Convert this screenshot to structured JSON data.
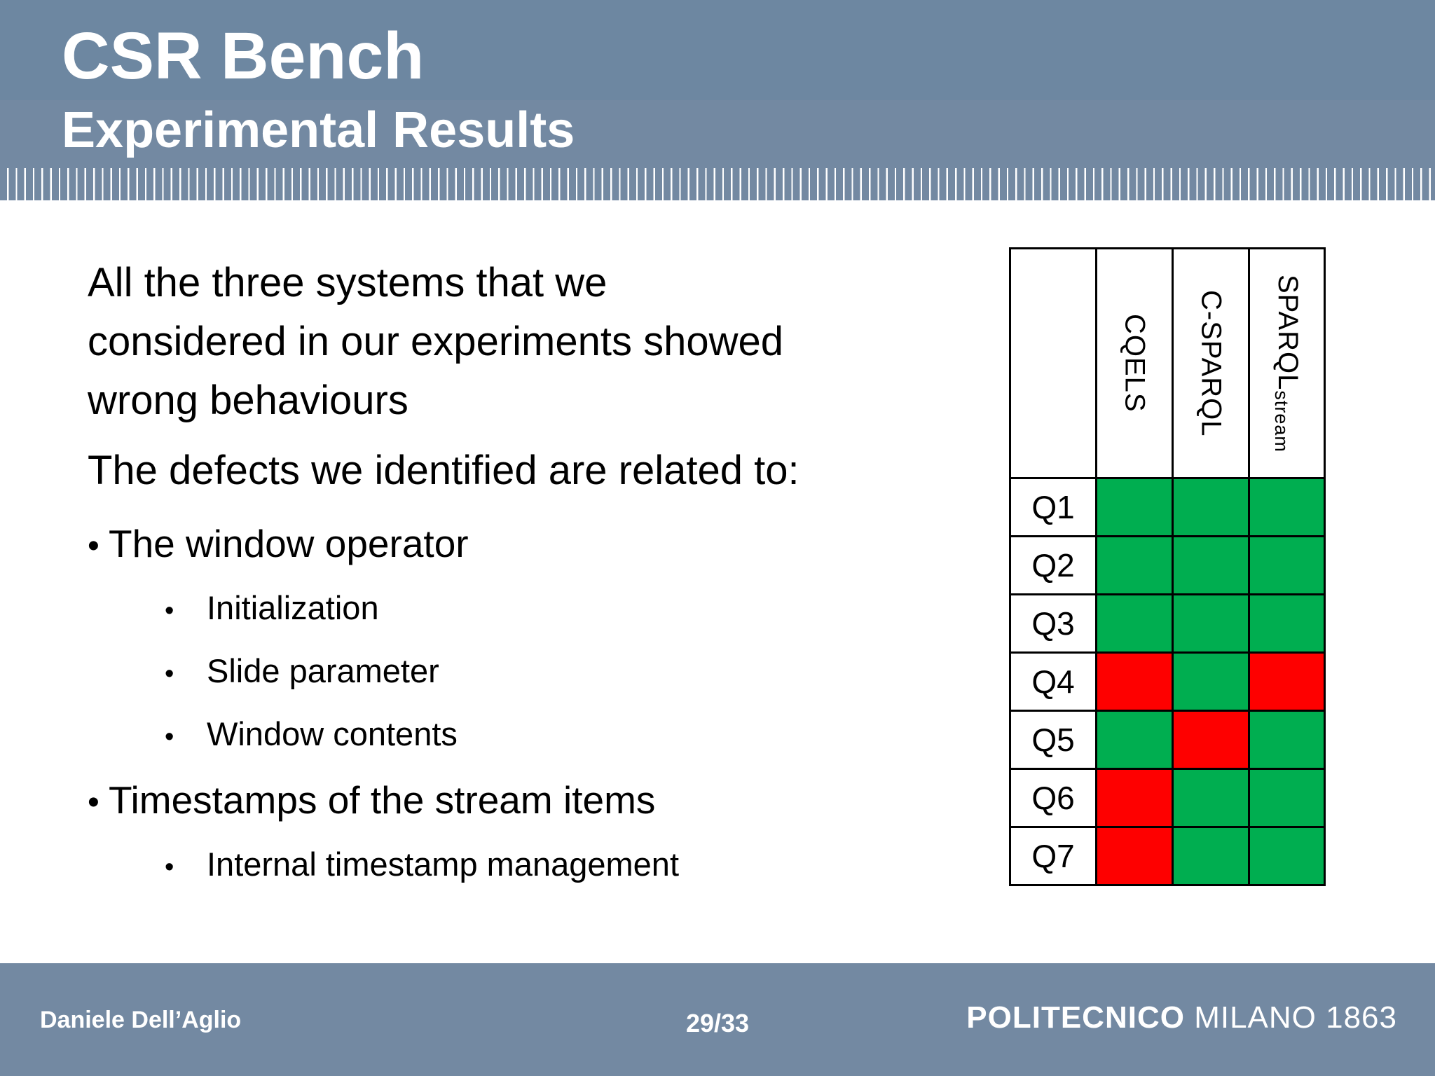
{
  "header": {
    "title": "CSR Bench",
    "subtitle": "Experimental Results"
  },
  "body": {
    "paragraph1_lines": [
      "All the three systems that we",
      "considered in our experiments showed",
      "wrong behaviours"
    ],
    "paragraph2": "The defects we identified are related to:",
    "bullets": [
      {
        "label": "The window operator",
        "children": [
          "Initialization",
          "Slide parameter",
          "Window contents"
        ]
      },
      {
        "label": "Timestamps of the stream items",
        "children": [
          "Internal timestamp management"
        ]
      }
    ]
  },
  "results_table": {
    "columns": [
      {
        "label": "CQELS",
        "subscript": ""
      },
      {
        "label": "C-SPARQL",
        "subscript": ""
      },
      {
        "label": "SPARQL",
        "subscript": "stream"
      }
    ],
    "rows": [
      {
        "label": "Q1",
        "cells": [
          "pass",
          "pass",
          "pass"
        ]
      },
      {
        "label": "Q2",
        "cells": [
          "pass",
          "pass",
          "pass"
        ]
      },
      {
        "label": "Q3",
        "cells": [
          "pass",
          "pass",
          "pass"
        ]
      },
      {
        "label": "Q4",
        "cells": [
          "fail",
          "pass",
          "fail"
        ]
      },
      {
        "label": "Q5",
        "cells": [
          "pass",
          "fail",
          "pass"
        ]
      },
      {
        "label": "Q6",
        "cells": [
          "fail",
          "pass",
          "pass"
        ]
      },
      {
        "label": "Q7",
        "cells": [
          "fail",
          "pass",
          "pass"
        ]
      }
    ],
    "status_colors": {
      "pass": "#00ae50",
      "fail": "#fe0000"
    }
  },
  "footer": {
    "author": "Daniele Dell’Aglio",
    "page": "29/33",
    "logo_bold": "POLITECNICO",
    "logo_light": " MILANO 1863"
  },
  "theme": {
    "band_top_blue": "#6d87a1",
    "band_sub_blue": "#7389a2",
    "footer_blue": "#7389a2",
    "tick_line": "#ffffff",
    "table_border": "#000000",
    "pass_green": "#00ae50",
    "fail_red": "#fe0000",
    "text_black": "#000000",
    "header_text_white": "#ffffff"
  }
}
